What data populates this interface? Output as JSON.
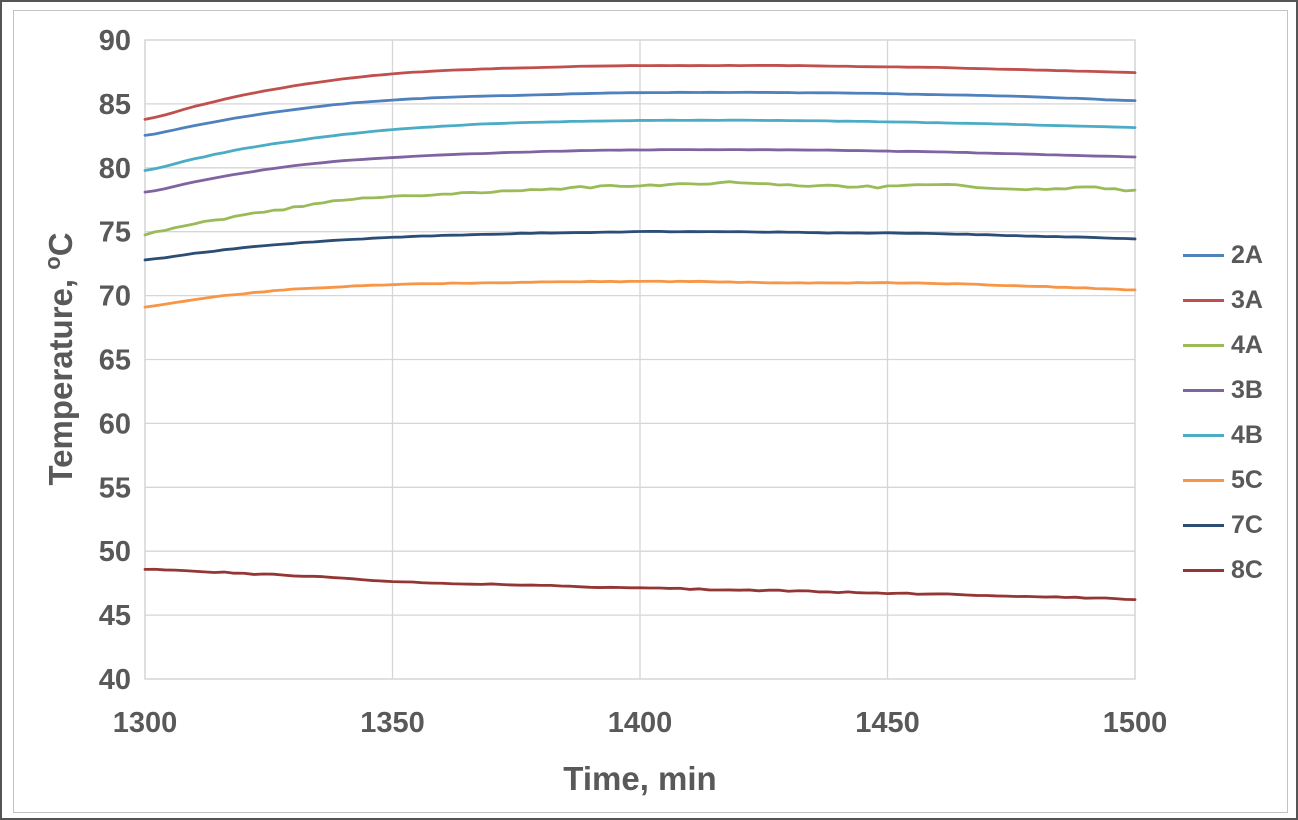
{
  "figure": {
    "xlabel": "Time, min",
    "ylabel_prefix": "Temperature, ",
    "ylabel_sup": "o",
    "ylabel_unit": "C"
  },
  "colors": {
    "text": "#595959",
    "gridline": "#d6d6d6",
    "plot_border": "#c3c3c3",
    "figure_border": "#555555"
  },
  "chart_data": {
    "type": "line",
    "title": "",
    "xlabel": "Time, min",
    "ylabel": "Temperature, °C",
    "xlim": [
      1300,
      1500
    ],
    "ylim": [
      40,
      90
    ],
    "xticks": [
      1300,
      1350,
      1400,
      1450,
      1500
    ],
    "yticks": [
      40,
      45,
      50,
      55,
      60,
      65,
      70,
      75,
      80,
      85,
      90
    ],
    "grid": true,
    "legend_position": "right",
    "x": [
      1300,
      1310,
      1320,
      1330,
      1340,
      1350,
      1360,
      1370,
      1380,
      1390,
      1400,
      1410,
      1420,
      1430,
      1440,
      1450,
      1460,
      1470,
      1480,
      1490,
      1500
    ],
    "series": [
      {
        "name": "2A",
        "color": "#4F81BD",
        "noise": 0.012,
        "values": [
          82.55,
          83.3,
          84.0,
          84.55,
          85.0,
          85.3,
          85.5,
          85.62,
          85.72,
          85.82,
          85.88,
          85.9,
          85.9,
          85.88,
          85.85,
          85.8,
          85.72,
          85.65,
          85.55,
          85.4,
          85.25
        ]
      },
      {
        "name": "3A",
        "color": "#C0504D",
        "noise": 0.012,
        "values": [
          83.8,
          84.8,
          85.7,
          86.4,
          86.95,
          87.35,
          87.6,
          87.75,
          87.85,
          87.95,
          88.0,
          88.0,
          88.0,
          88.0,
          87.95,
          87.9,
          87.85,
          87.75,
          87.65,
          87.55,
          87.45
        ]
      },
      {
        "name": "4A",
        "color": "#9BBB59",
        "noise": 0.085,
        "values": [
          74.8,
          75.6,
          76.3,
          76.9,
          77.45,
          77.75,
          77.95,
          78.15,
          78.3,
          78.5,
          78.65,
          78.7,
          78.9,
          78.6,
          78.55,
          78.5,
          78.7,
          78.45,
          78.3,
          78.45,
          78.2
        ]
      },
      {
        "name": "3B",
        "color": "#8064A2",
        "noise": 0.012,
        "values": [
          78.1,
          78.9,
          79.6,
          80.15,
          80.55,
          80.8,
          81.0,
          81.15,
          81.27,
          81.35,
          81.4,
          81.42,
          81.42,
          81.4,
          81.37,
          81.3,
          81.25,
          81.15,
          81.05,
          80.95,
          80.85
        ]
      },
      {
        "name": "4B",
        "color": "#4BACC6",
        "noise": 0.012,
        "values": [
          79.8,
          80.7,
          81.5,
          82.1,
          82.6,
          83.0,
          83.25,
          83.45,
          83.57,
          83.65,
          83.7,
          83.72,
          83.72,
          83.7,
          83.65,
          83.6,
          83.52,
          83.45,
          83.35,
          83.25,
          83.15
        ]
      },
      {
        "name": "5C",
        "color": "#F79646",
        "noise": 0.025,
        "values": [
          69.1,
          69.7,
          70.15,
          70.5,
          70.7,
          70.85,
          70.95,
          71.0,
          71.05,
          71.1,
          71.1,
          71.1,
          71.05,
          71.0,
          71.0,
          71.0,
          70.95,
          70.85,
          70.72,
          70.6,
          70.45
        ]
      },
      {
        "name": "7C",
        "color": "#2C4D75",
        "noise": 0.02,
        "values": [
          72.8,
          73.3,
          73.75,
          74.1,
          74.35,
          74.55,
          74.7,
          74.8,
          74.9,
          74.95,
          75.0,
          75.0,
          75.0,
          74.95,
          74.9,
          74.9,
          74.85,
          74.75,
          74.65,
          74.55,
          74.45
        ]
      },
      {
        "name": "8C",
        "color": "#943634",
        "noise": 0.045,
        "values": [
          48.6,
          48.45,
          48.25,
          48.1,
          47.9,
          47.65,
          47.5,
          47.4,
          47.3,
          47.2,
          47.1,
          47.05,
          46.95,
          46.9,
          46.8,
          46.7,
          46.65,
          46.55,
          46.45,
          46.35,
          46.25
        ]
      }
    ]
  }
}
